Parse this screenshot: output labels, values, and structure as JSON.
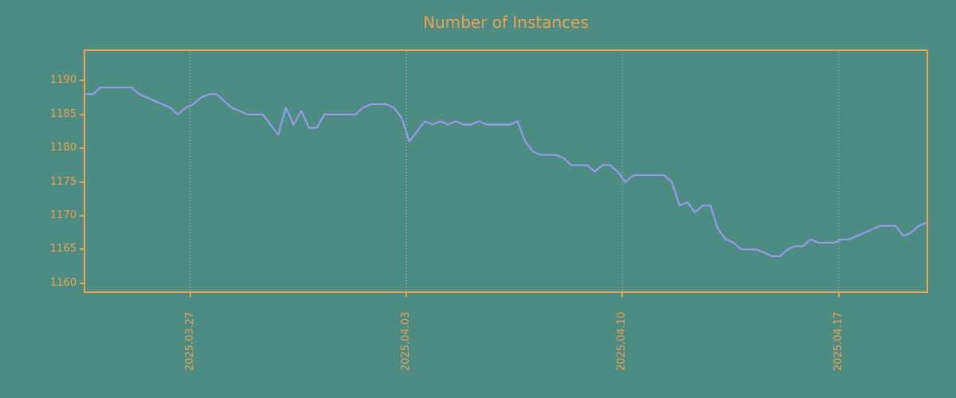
{
  "colors": {
    "background": "#4d8c82",
    "accent": "#efa04f",
    "line": "#9c9cf0",
    "grid": "#ecd9a0"
  },
  "chart_data": {
    "type": "line",
    "title": "Number of Instances",
    "xlabel": "",
    "ylabel": "",
    "legend": "none",
    "grid": "vertical-dotted",
    "xlim_days": [
      0,
      27.25
    ],
    "ylim": [
      1158.8,
      1194.4
    ],
    "y_ticks": [
      1160,
      1165,
      1170,
      1175,
      1180,
      1185,
      1190
    ],
    "x_ticks": [
      {
        "day": 3.4,
        "label": "2025.03.27"
      },
      {
        "day": 10.4,
        "label": "2025.04.03"
      },
      {
        "day": 17.4,
        "label": "2025.04.10"
      },
      {
        "day": 24.4,
        "label": "2025.04.17"
      }
    ],
    "x_step_days": 0.25,
    "values": [
      1188,
      1188,
      1189,
      1189,
      1189,
      1189,
      1189,
      1188,
      1187.5,
      1187,
      1186.5,
      1186,
      1185,
      1186,
      1186.5,
      1187.5,
      1188,
      1188,
      1187,
      1186,
      1185.5,
      1185,
      1185,
      1185,
      1183.5,
      1182,
      1186,
      1183.5,
      1185.5,
      1183,
      1183,
      1185,
      1185,
      1185,
      1185,
      1185,
      1186,
      1186.5,
      1186.5,
      1186.5,
      1186,
      1184.5,
      1181,
      1182.5,
      1184,
      1183.5,
      1184,
      1183.5,
      1184,
      1183.5,
      1183.5,
      1184,
      1183.5,
      1183.5,
      1183.5,
      1183.5,
      1184,
      1181,
      1179.5,
      1179,
      1179,
      1179,
      1178.5,
      1177.5,
      1177.5,
      1177.5,
      1176.5,
      1177.5,
      1177.5,
      1176.5,
      1175,
      1176,
      1176,
      1176,
      1176,
      1176,
      1175,
      1171.5,
      1172,
      1170.5,
      1171.5,
      1171.5,
      1168,
      1166.5,
      1166,
      1165,
      1165,
      1165,
      1164.5,
      1164,
      1164,
      1165,
      1165.5,
      1165.5,
      1166.5,
      1166,
      1166,
      1166,
      1166.5,
      1166.5,
      1167,
      1167.5,
      1168,
      1168.5,
      1168.5,
      1168.5,
      1167,
      1167.5,
      1168.5,
      1169
    ]
  }
}
